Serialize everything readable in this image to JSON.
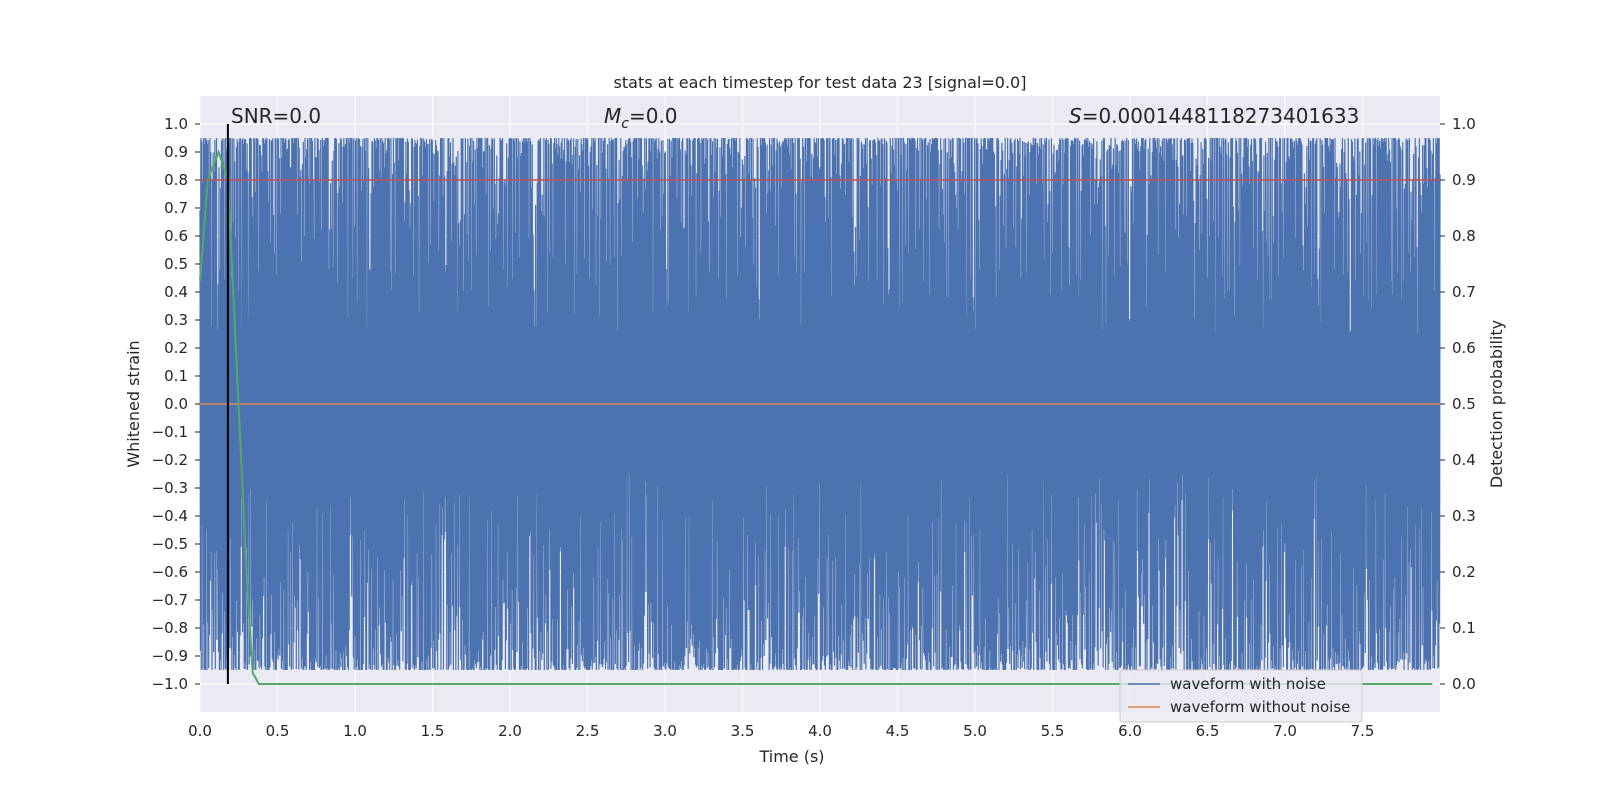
{
  "chart_data": {
    "type": "line",
    "title": "stats at each timestep for test data 23 [signal=0.0]",
    "xlabel": "Time (s)",
    "ylabel_left": "Whitened strain",
    "ylabel_right": "Detection probability",
    "xlim": [
      0,
      8
    ],
    "ylim_left": [
      -1.1,
      1.1
    ],
    "ylim_right": [
      -0.05,
      1.05
    ],
    "x_ticks": [
      "0.0",
      "0.5",
      "1.0",
      "1.5",
      "2.0",
      "2.5",
      "3.0",
      "3.5",
      "4.0",
      "4.5",
      "5.0",
      "5.5",
      "6.0",
      "6.5",
      "7.0",
      "7.5"
    ],
    "y_ticks_left": [
      "−1.0",
      "−0.9",
      "−0.8",
      "−0.7",
      "−0.6",
      "−0.5",
      "−0.4",
      "−0.3",
      "−0.2",
      "−0.1",
      "0.0",
      "0.1",
      "0.2",
      "0.3",
      "0.4",
      "0.5",
      "0.6",
      "0.7",
      "0.8",
      "0.9",
      "1.0"
    ],
    "y_ticks_right": [
      "0.0",
      "0.1",
      "0.2",
      "0.3",
      "0.4",
      "0.5",
      "0.6",
      "0.7",
      "0.8",
      "0.9",
      "1.0"
    ],
    "grid": true,
    "legend_position": "lower-right",
    "annotations": {
      "snr": "SNR=0.0",
      "mc_symbol": "M",
      "mc_sub": "c",
      "mc_value": "=0.0",
      "s_symbol": "S",
      "s_value": "=0.0001448118273401633"
    },
    "series": [
      {
        "name": "waveform with noise",
        "color": "#4c72b0",
        "description": "dense noisy whitened strain spanning roughly -1.0 to 1.0 over 0-8 s",
        "envelope_upper_typical": 0.95,
        "envelope_lower_typical": -0.95,
        "x_range": [
          0,
          8
        ]
      },
      {
        "name": "waveform without noise",
        "color": "#dd8452",
        "x": [
          0,
          8
        ],
        "y": [
          0.0,
          0.0
        ]
      }
    ],
    "threshold_line": {
      "axis": "right",
      "value": 0.9,
      "color": "#c44e52"
    },
    "vertical_marker": {
      "x": 0.18,
      "color": "#000000"
    },
    "detection_probability": {
      "color": "#55a868",
      "x": [
        0.0,
        0.05,
        0.12,
        0.18,
        0.24,
        0.3,
        0.34,
        0.38,
        0.45,
        1.0,
        2.0,
        3.0,
        4.0,
        5.0,
        6.0,
        7.0,
        7.95
      ],
      "y": [
        0.72,
        0.9,
        0.95,
        0.9,
        0.55,
        0.2,
        0.02,
        0.0,
        0.0,
        0.0,
        0.0,
        0.0,
        0.0,
        0.0,
        0.0,
        0.0,
        0.0
      ]
    }
  }
}
